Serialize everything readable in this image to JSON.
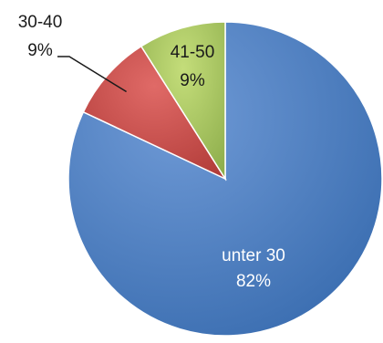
{
  "chart_data": {
    "type": "pie",
    "start_angle_deg": 90,
    "direction": "clockwise",
    "slices": [
      {
        "category": "unter 30",
        "percent_label": "82%",
        "value": 82,
        "color": "#4a7ebb"
      },
      {
        "category": "30-40",
        "percent_label": "9%",
        "value": 9,
        "color": "#c0504d"
      },
      {
        "category": "41-50",
        "percent_label": "9%",
        "value": 9,
        "color": "#9bbb59"
      }
    ],
    "legend": "none"
  }
}
